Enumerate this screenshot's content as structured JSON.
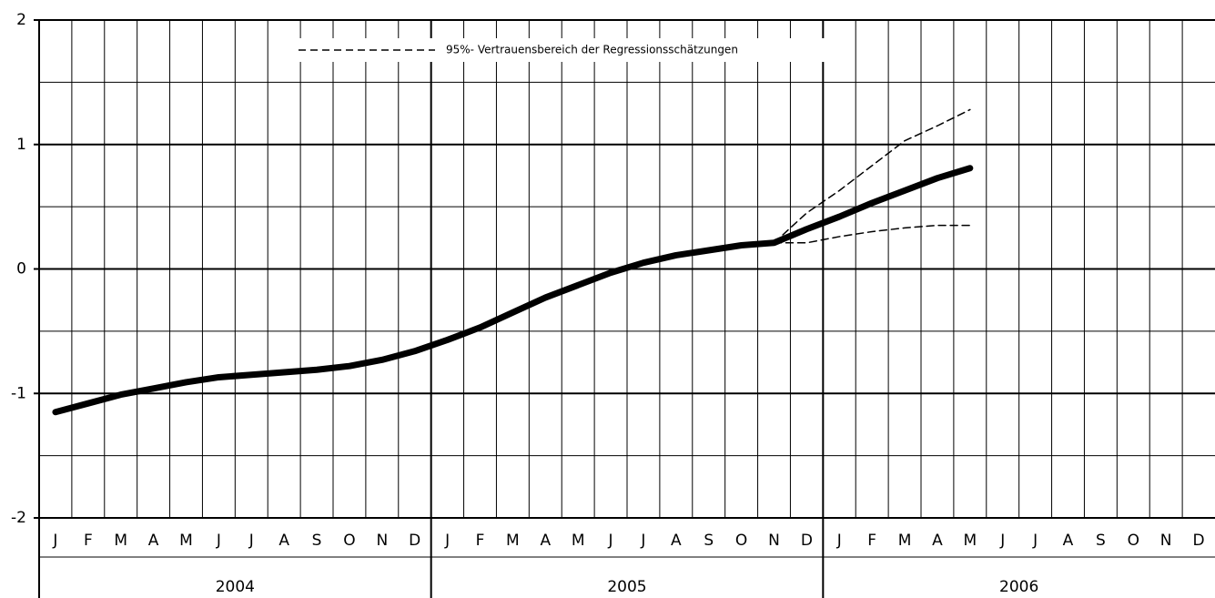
{
  "chart_data": {
    "type": "line",
    "categories": [
      "J",
      "F",
      "M",
      "A",
      "M",
      "J",
      "J",
      "A",
      "S",
      "O",
      "N",
      "D",
      "J",
      "F",
      "M",
      "A",
      "M",
      "J",
      "J",
      "A",
      "S",
      "O",
      "N",
      "D",
      "J",
      "F",
      "M",
      "A",
      "M",
      "J",
      "J",
      "A",
      "S",
      "O",
      "N",
      "D"
    ],
    "year_groups": [
      "2004",
      "2005",
      "2006"
    ],
    "series": [
      {
        "color": "#000000",
        "values": [
          -1.15,
          -1.08,
          -1.01,
          -0.96,
          -0.91,
          -0.87,
          -0.85,
          -0.83,
          -0.81,
          -0.78,
          -0.73,
          -0.66,
          -0.57,
          -0.47,
          -0.35,
          -0.23,
          -0.13,
          -0.03,
          0.05,
          0.11,
          0.15,
          0.19,
          0.21,
          0.32,
          0.42,
          0.53,
          0.63,
          0.73,
          0.81,
          null,
          null,
          null,
          null,
          null,
          null,
          null
        ]
      }
    ],
    "band": {
      "name": "95%- Vertrauensbereich der Regressionsschätzungen",
      "color": "#000000",
      "upper": [
        null,
        null,
        null,
        null,
        null,
        null,
        null,
        null,
        null,
        null,
        null,
        null,
        null,
        null,
        null,
        null,
        null,
        null,
        null,
        null,
        null,
        null,
        0.21,
        0.45,
        0.63,
        0.83,
        1.03,
        1.15,
        1.28,
        null,
        null,
        null,
        null,
        null,
        null,
        null
      ],
      "lower": [
        null,
        null,
        null,
        null,
        null,
        null,
        null,
        null,
        null,
        null,
        null,
        null,
        null,
        null,
        null,
        null,
        null,
        null,
        null,
        null,
        null,
        null,
        0.21,
        0.21,
        0.26,
        0.3,
        0.33,
        0.35,
        0.35,
        null,
        null,
        null,
        null,
        null,
        null,
        null
      ]
    },
    "ylim": [
      -2,
      2
    ],
    "yticks": [
      -2,
      -1,
      0,
      1,
      2
    ],
    "minor_yticks": [
      -1.5,
      -0.5,
      0.5,
      1.5
    ],
    "grid": true
  }
}
